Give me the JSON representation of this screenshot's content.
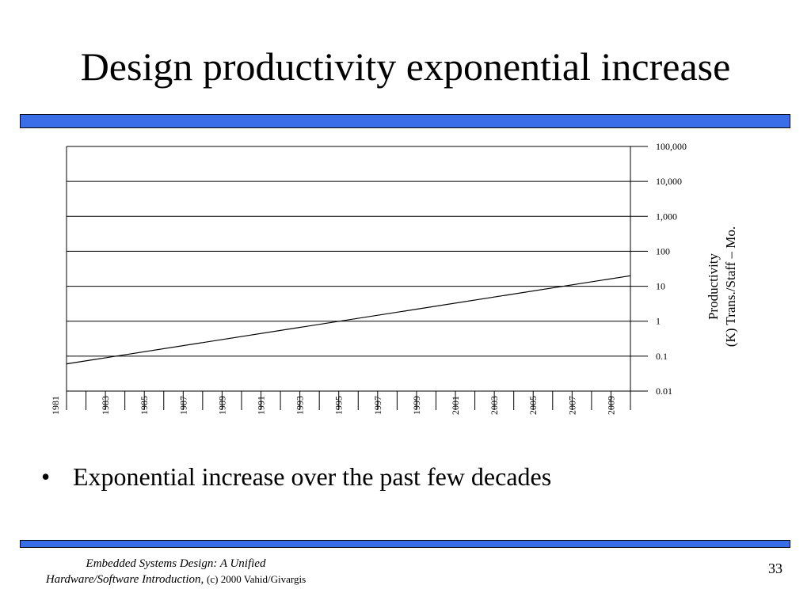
{
  "slide": {
    "title": "Design productivity exponential increase",
    "bullets": [
      "Exponential increase over the past few decades"
    ],
    "footer": {
      "line1": "Embedded Systems Design: A Unified",
      "line2_italic": "Hardware/Software Introduction,",
      "line2_plain": "(c) 2000 Vahid/Givargis"
    },
    "page_number": "33",
    "colors": {
      "accent_bar": "#3a6ee8",
      "line": "#000000"
    }
  },
  "chart_data": {
    "type": "line",
    "title": "",
    "xlabel": "",
    "ylabel_lines": [
      "Productivity",
      "(K) Trans./Staff – Mo."
    ],
    "y_scale": "log",
    "ylim": [
      0.01,
      100000
    ],
    "y_ticks": [
      0.01,
      0.1,
      1,
      10,
      100,
      1000,
      10000,
      100000
    ],
    "y_tick_labels": [
      "0.01",
      "0.1",
      "1",
      "10",
      "100",
      "1,000",
      "10,000",
      "100,000"
    ],
    "y_axis_side": "right",
    "grid": true,
    "x_tick_labels": [
      "1981",
      "1983",
      "1985",
      "1987",
      "1989",
      "1991",
      "1993",
      "1995",
      "1997",
      "1999",
      "2001",
      "2003",
      "2005",
      "2007",
      "2009"
    ],
    "x_range": [
      1981,
      2010
    ],
    "series": [
      {
        "x": [
          1981,
          2010
        ],
        "y": [
          0.06,
          20
        ],
        "color": "#000000"
      }
    ]
  }
}
